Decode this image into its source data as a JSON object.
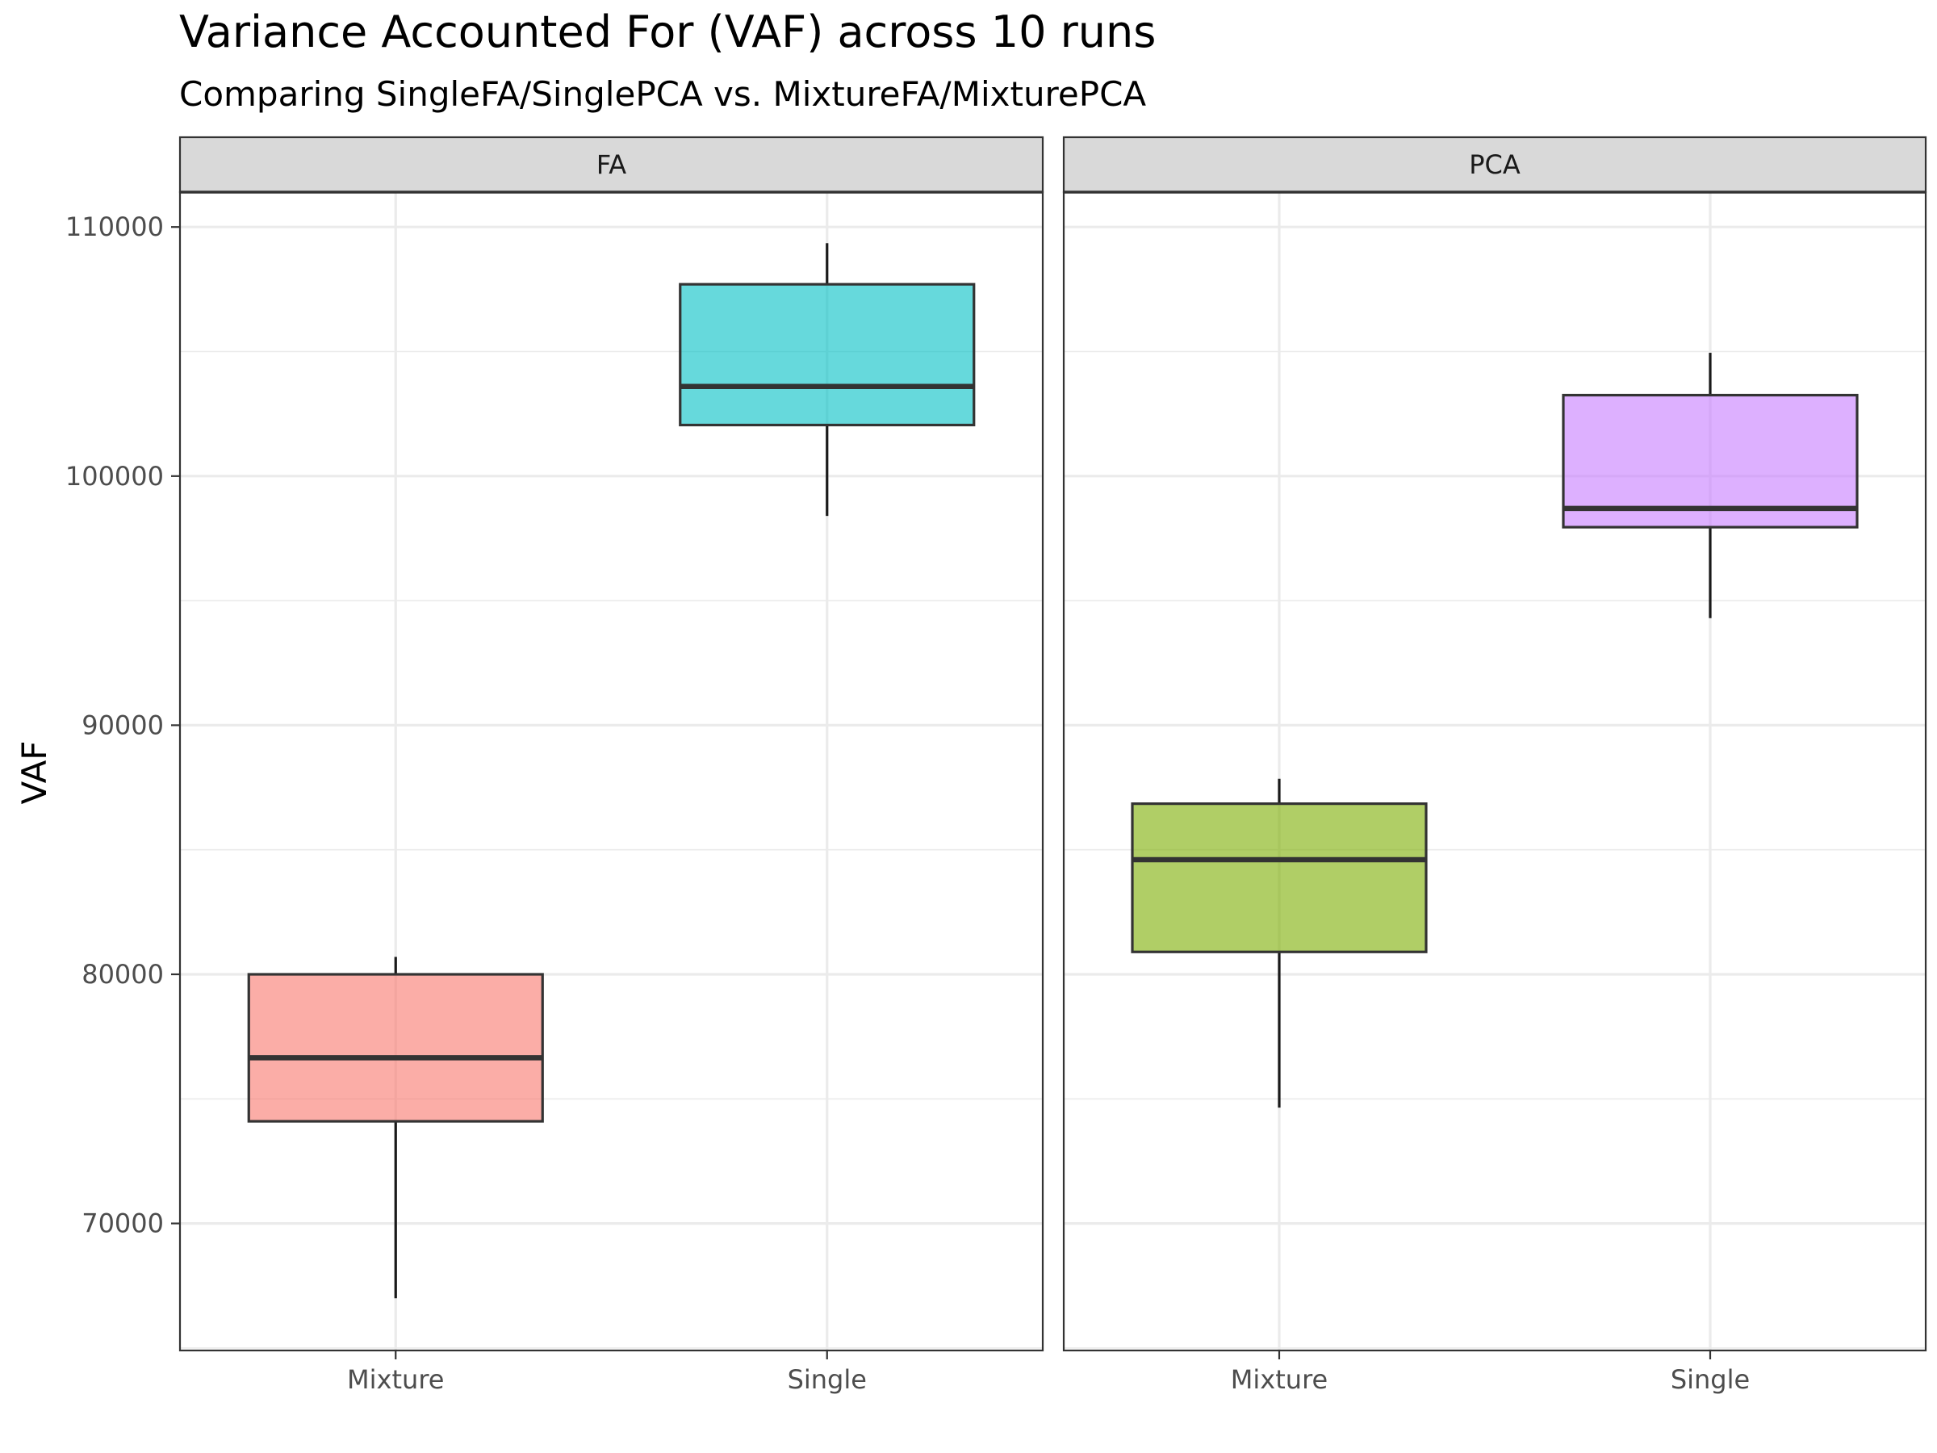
{
  "chart_data": {
    "type": "boxplot",
    "title": "Variance Accounted For (VAF) across 10 runs",
    "subtitle": "Comparing SingleFA/SinglePCA vs. MixtureFA/MixturePCA",
    "xlabel": "",
    "ylabel": "VAF",
    "ylim": [
      64900,
      111400
    ],
    "yticks": [
      70000,
      80000,
      90000,
      100000,
      110000
    ],
    "grid": true,
    "legend": "none",
    "categories": [
      "Mixture",
      "Single"
    ],
    "panels": [
      {
        "name": "FA",
        "boxes": [
          {
            "category": "Mixture",
            "min": 67000,
            "q1": 74100,
            "median": 76650,
            "q3": 80000,
            "max": 80700,
            "color": "#F8766D"
          },
          {
            "category": "Single",
            "min": 98400,
            "q1": 102050,
            "median": 103600,
            "q3": 107700,
            "max": 109350,
            "color": "#00BFC4"
          }
        ]
      },
      {
        "name": "PCA",
        "boxes": [
          {
            "category": "Mixture",
            "min": 74650,
            "q1": 80900,
            "median": 84600,
            "q3": 86850,
            "max": 87850,
            "color": "#7CAE00"
          },
          {
            "category": "Single",
            "min": 94300,
            "q1": 97950,
            "median": 98700,
            "q3": 103250,
            "max": 104950,
            "color": "#C77CFF"
          }
        ]
      }
    ]
  }
}
